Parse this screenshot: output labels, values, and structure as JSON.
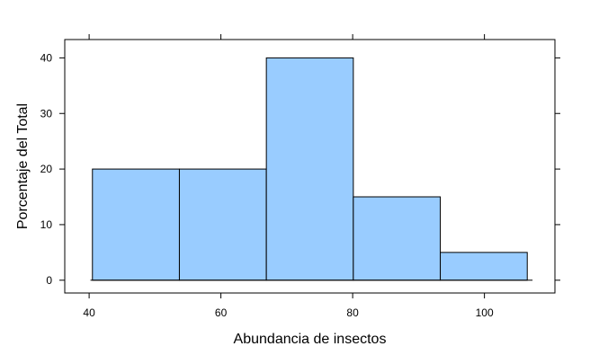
{
  "chart_data": {
    "type": "bar",
    "subtype": "histogram",
    "title": "",
    "xlabel": "Abundancia de insectos",
    "ylabel": "Porcentaje del Total",
    "bins": [
      {
        "from": 40.5,
        "to": 53.7,
        "value": 20
      },
      {
        "from": 53.7,
        "to": 66.9,
        "value": 20
      },
      {
        "from": 66.9,
        "to": 80.1,
        "value": 40
      },
      {
        "from": 80.1,
        "to": 93.3,
        "value": 15
      },
      {
        "from": 93.3,
        "to": 106.5,
        "value": 5
      }
    ],
    "xlim": [
      36.3,
      110.7
    ],
    "ylim": [
      -2.3,
      43.3
    ],
    "xticks": [
      40,
      60,
      80,
      100
    ],
    "yticks": [
      0,
      10,
      20,
      30,
      40
    ],
    "xtick_labels": [
      "40",
      "60",
      "80",
      "100"
    ],
    "ytick_labels": [
      "0",
      "10",
      "20",
      "30",
      "40"
    ],
    "bar_color": "#99ccff",
    "edge_color": "#000000",
    "grid": false,
    "legend": "none"
  }
}
